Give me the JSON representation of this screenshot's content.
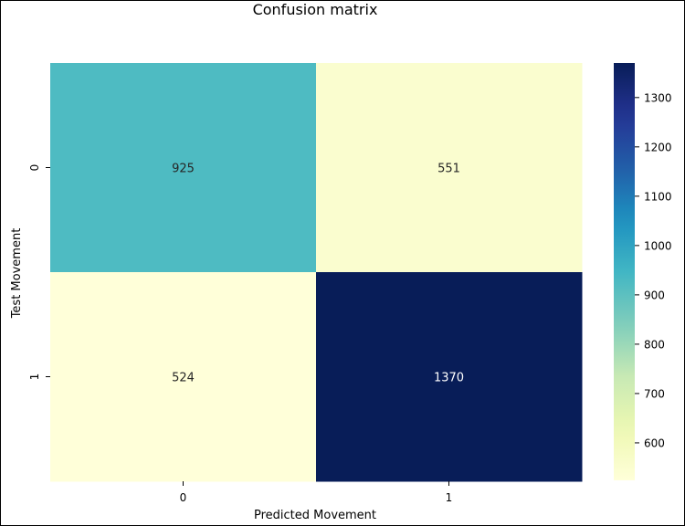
{
  "chart_data": {
    "type": "heatmap",
    "title": "Confusion matrix",
    "xlabel": "Predicted Movement",
    "ylabel": "Test Movement",
    "x_categories": [
      "0",
      "1"
    ],
    "y_categories": [
      "0",
      "1"
    ],
    "values": [
      [
        925,
        551
      ],
      [
        524,
        1370
      ]
    ],
    "colormap": "YlGnBu",
    "colorbar": {
      "min": 524,
      "max": 1370,
      "ticks": [
        600,
        700,
        800,
        900,
        1000,
        1100,
        1200,
        1300
      ]
    },
    "grid": false,
    "legend": "colorbar-right"
  }
}
